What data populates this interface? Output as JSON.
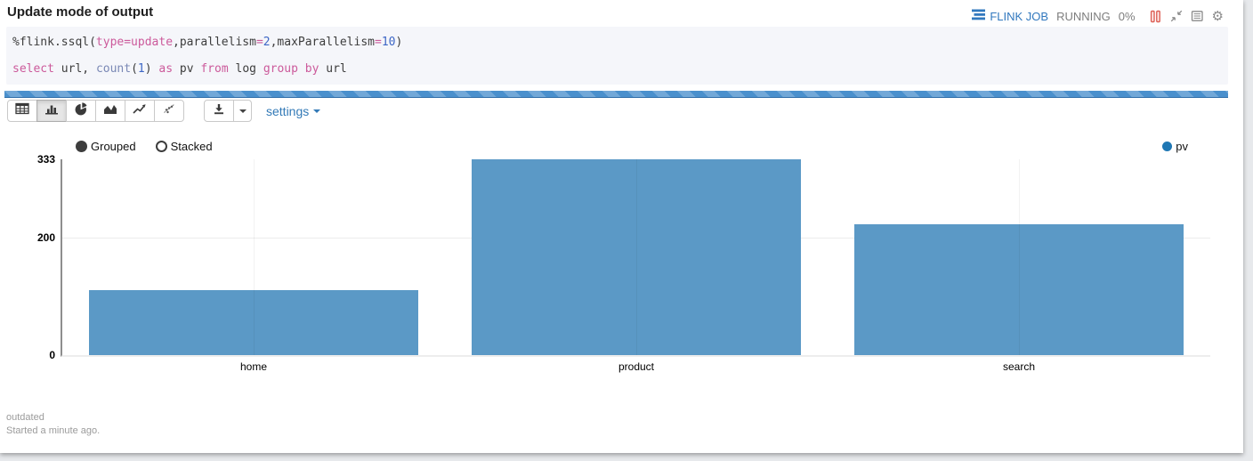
{
  "title": "Update mode of output",
  "status_bar": {
    "job_link_label": "FLINK JOB",
    "job_link_color": "#3178be",
    "status_text": "RUNNING",
    "progress_percent": "0%",
    "pause_icon_color": "#dd5f55",
    "icon_names": [
      "flink-job-list-icon",
      "pause-icon",
      "shrink-output-icon",
      "output-log-icon",
      "gear-icon"
    ]
  },
  "code_editor": {
    "lines": [
      {
        "tokens": [
          {
            "t": "%flink.ssql(",
            "c": "plain"
          },
          {
            "t": "type=update",
            "c": "keyword"
          },
          {
            "t": ",parallelism",
            "c": "plain"
          },
          {
            "t": "=",
            "c": "keyword"
          },
          {
            "t": "2",
            "c": "number"
          },
          {
            "t": ",maxParallelism",
            "c": "plain"
          },
          {
            "t": "=",
            "c": "keyword"
          },
          {
            "t": "10",
            "c": "number"
          },
          {
            "t": ")",
            "c": "plain"
          }
        ]
      },
      {
        "tokens": [
          {
            "t": "select",
            "c": "keyword"
          },
          {
            "t": " url, ",
            "c": "plain"
          },
          {
            "t": "count",
            "c": "builtin"
          },
          {
            "t": "(",
            "c": "plain"
          },
          {
            "t": "1",
            "c": "number"
          },
          {
            "t": ") ",
            "c": "plain"
          },
          {
            "t": "as",
            "c": "keyword"
          },
          {
            "t": " pv ",
            "c": "plain"
          },
          {
            "t": "from",
            "c": "keyword"
          },
          {
            "t": " log ",
            "c": "plain"
          },
          {
            "t": "group",
            "c": "keyword"
          },
          {
            "t": " ",
            "c": "plain"
          },
          {
            "t": "by",
            "c": "keyword"
          },
          {
            "t": " url",
            "c": "plain"
          }
        ]
      }
    ]
  },
  "toolbar": {
    "chart_type_buttons": [
      "table",
      "bar",
      "pie",
      "area",
      "line",
      "scatter"
    ],
    "active_chart_type": "bar",
    "download_icon": "download-icon",
    "settings_label": "settings"
  },
  "chart_data": {
    "type": "bar",
    "categories": [
      "home",
      "product",
      "search"
    ],
    "series": [
      {
        "name": "pv",
        "values": [
          111,
          333,
          222
        ],
        "legend_color": "#1f77b4",
        "bar_color": "#5b99c6"
      }
    ],
    "yticks": [
      0,
      200,
      333
    ],
    "ylim": [
      0,
      333
    ],
    "mode_options": [
      "Grouped",
      "Stacked"
    ],
    "selected_mode": "Grouped",
    "grid": true,
    "legend_position": "top-right",
    "bar_band_fraction": 0.86
  },
  "footer": {
    "status_text": "outdated",
    "started_text": "Started a minute ago."
  }
}
